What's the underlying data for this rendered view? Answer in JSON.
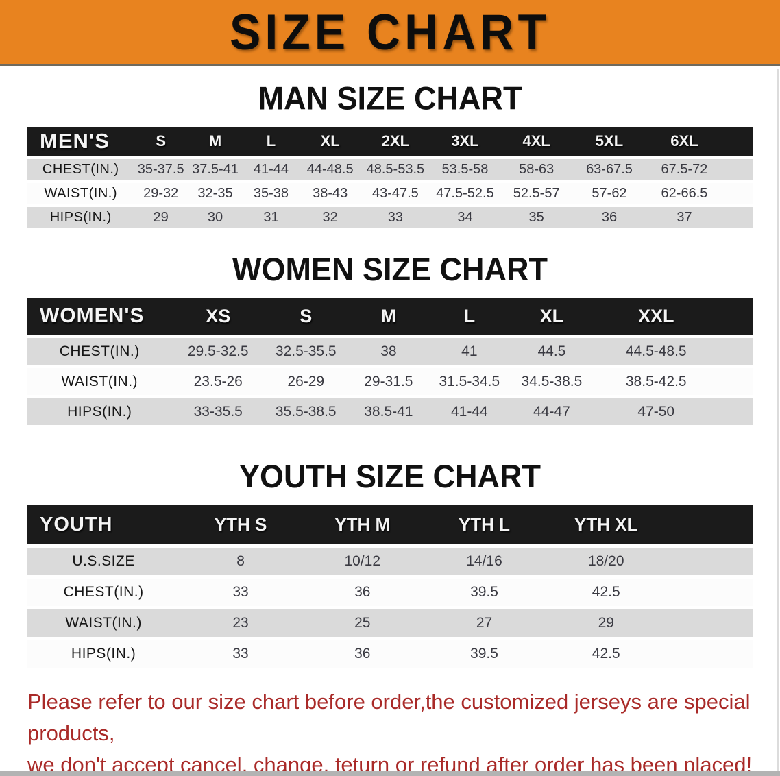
{
  "banner": {
    "title": "SIZE CHART",
    "bg_color": "#E8831F"
  },
  "sections": [
    {
      "key": "men",
      "heading": "MAN SIZE CHART",
      "corner_label": "MEN'S",
      "columns": [
        "S",
        "M",
        "L",
        "XL",
        "2XL",
        "3XL",
        "4XL",
        "5XL",
        "6XL"
      ],
      "rows": [
        {
          "label": "CHEST(IN.)",
          "values": [
            "35-37.5",
            "37.5-41",
            "41-44",
            "44-48.5",
            "48.5-53.5",
            "53.5-58",
            "58-63",
            "63-67.5",
            "67.5-72"
          ]
        },
        {
          "label": "WAIST(IN.)",
          "values": [
            "29-32",
            "32-35",
            "35-38",
            "38-43",
            "43-47.5",
            "47.5-52.5",
            "52.5-57",
            "57-62",
            "62-66.5"
          ]
        },
        {
          "label": "HIPS(IN.)",
          "values": [
            "29",
            "30",
            "31",
            "32",
            "33",
            "34",
            "35",
            "36",
            "37"
          ]
        }
      ]
    },
    {
      "key": "women",
      "heading": "WOMEN SIZE CHART",
      "corner_label": "WOMEN'S",
      "columns": [
        "XS",
        "S",
        "M",
        "L",
        "XL",
        "XXL"
      ],
      "rows": [
        {
          "label": "CHEST(IN.)",
          "values": [
            "29.5-32.5",
            "32.5-35.5",
            "38",
            "41",
            "44.5",
            "44.5-48.5"
          ]
        },
        {
          "label": "WAIST(IN.)",
          "values": [
            "23.5-26",
            "26-29",
            "29-31.5",
            "31.5-34.5",
            "34.5-38.5",
            "38.5-42.5"
          ]
        },
        {
          "label": "HIPS(IN.)",
          "values": [
            "33-35.5",
            "35.5-38.5",
            "38.5-41",
            "41-44",
            "44-47",
            "47-50"
          ]
        }
      ]
    },
    {
      "key": "youth",
      "heading": "YOUTH SIZE CHART",
      "corner_label": "YOUTH",
      "columns": [
        "YTH S",
        "YTH M",
        "YTH L",
        "YTH XL"
      ],
      "rows": [
        {
          "label": "U.S.SIZE",
          "values": [
            "8",
            "10/12",
            "14/16",
            "18/20"
          ]
        },
        {
          "label": "CHEST(IN.)",
          "values": [
            "33",
            "36",
            "39.5",
            "42.5"
          ]
        },
        {
          "label": "WAIST(IN.)",
          "values": [
            "23",
            "25",
            "27",
            "29"
          ]
        },
        {
          "label": "HIPS(IN.)",
          "values": [
            "33",
            "36",
            "39.5",
            "42.5"
          ]
        }
      ]
    }
  ],
  "footer": {
    "text_color": "#A92A28",
    "lines": [
      "Please refer to our size chart before order,the customized jerseys are special products,",
      "we don't accept cancel, change, teturn or refund after order has been placed!"
    ]
  }
}
